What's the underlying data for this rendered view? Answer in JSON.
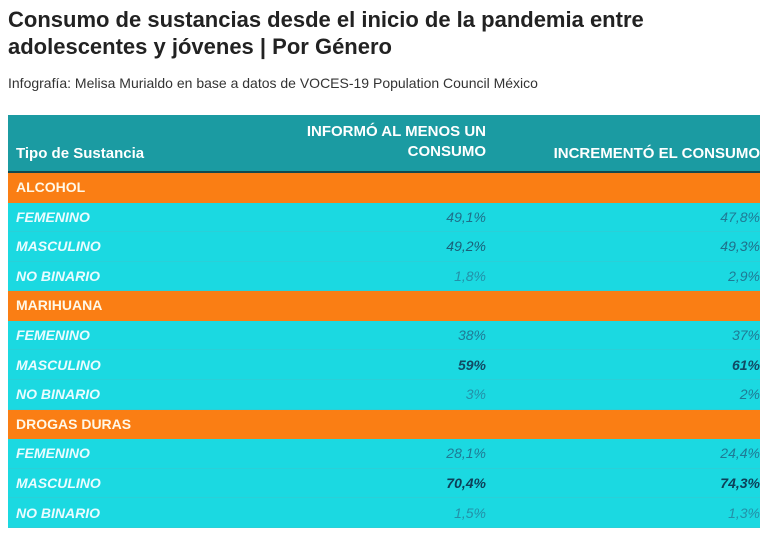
{
  "title": "Consumo de sustancias desde el inicio de la pandemia entre adolescentes y jóvenes | Por Género",
  "subtitle": "Infografía: Melisa Murialdo en base a datos de VOCES-19 Population Council México",
  "colors": {
    "header": "#1b9ba2",
    "group": "#fa7e14",
    "row": "#1bd9e1"
  },
  "chart_data": {
    "type": "table",
    "columns": [
      "Tipo de Sustancia",
      "INFORMÓ AL MENOS UN CONSUMO",
      "INCREMENTÓ EL CONSUMO"
    ],
    "groups": [
      {
        "name": "ALCOHOL",
        "rows": [
          {
            "label": "FEMENINO",
            "v1": "49,1%",
            "v2": "47,8%",
            "c1": "#1f6f8a",
            "c2": "#1f7a95",
            "bold": false
          },
          {
            "label": "MASCULINO",
            "v1": "49,2%",
            "v2": "49,3%",
            "c1": "#1a5f78",
            "c2": "#1f6f8a",
            "bold": false
          },
          {
            "label": "NO BINARIO",
            "v1": "1,8%",
            "v2": "2,9%",
            "c1": "#2390a8",
            "c2": "#1f7a95",
            "bold": false
          }
        ]
      },
      {
        "name": "MARIHUANA",
        "rows": [
          {
            "label": "FEMENINO",
            "v1": "38%",
            "v2": "37%",
            "c1": "#1f7a95",
            "c2": "#1f7a95",
            "bold": false
          },
          {
            "label": "MASCULINO",
            "v1": "59%",
            "v2": "61%",
            "c1": "#114a64",
            "c2": "#114a64",
            "bold": true
          },
          {
            "label": "NO BINARIO",
            "v1": "3%",
            "v2": "2%",
            "c1": "#2390a8",
            "c2": "#1f7a95",
            "bold": false
          }
        ]
      },
      {
        "name": "DROGAS DURAS",
        "rows": [
          {
            "label": "FEMENINO",
            "v1": "28,1%",
            "v2": "24,4%",
            "c1": "#1f7a95",
            "c2": "#1f7a95",
            "bold": false
          },
          {
            "label": "MASCULINO",
            "v1": "70,4%",
            "v2": "74,3%",
            "c1": "#0d3f58",
            "c2": "#0d3f58",
            "bold": true
          },
          {
            "label": "NO BINARIO",
            "v1": "1,5%",
            "v2": "1,3%",
            "c1": "#2390a8",
            "c2": "#2390a8",
            "bold": false
          }
        ]
      }
    ]
  }
}
